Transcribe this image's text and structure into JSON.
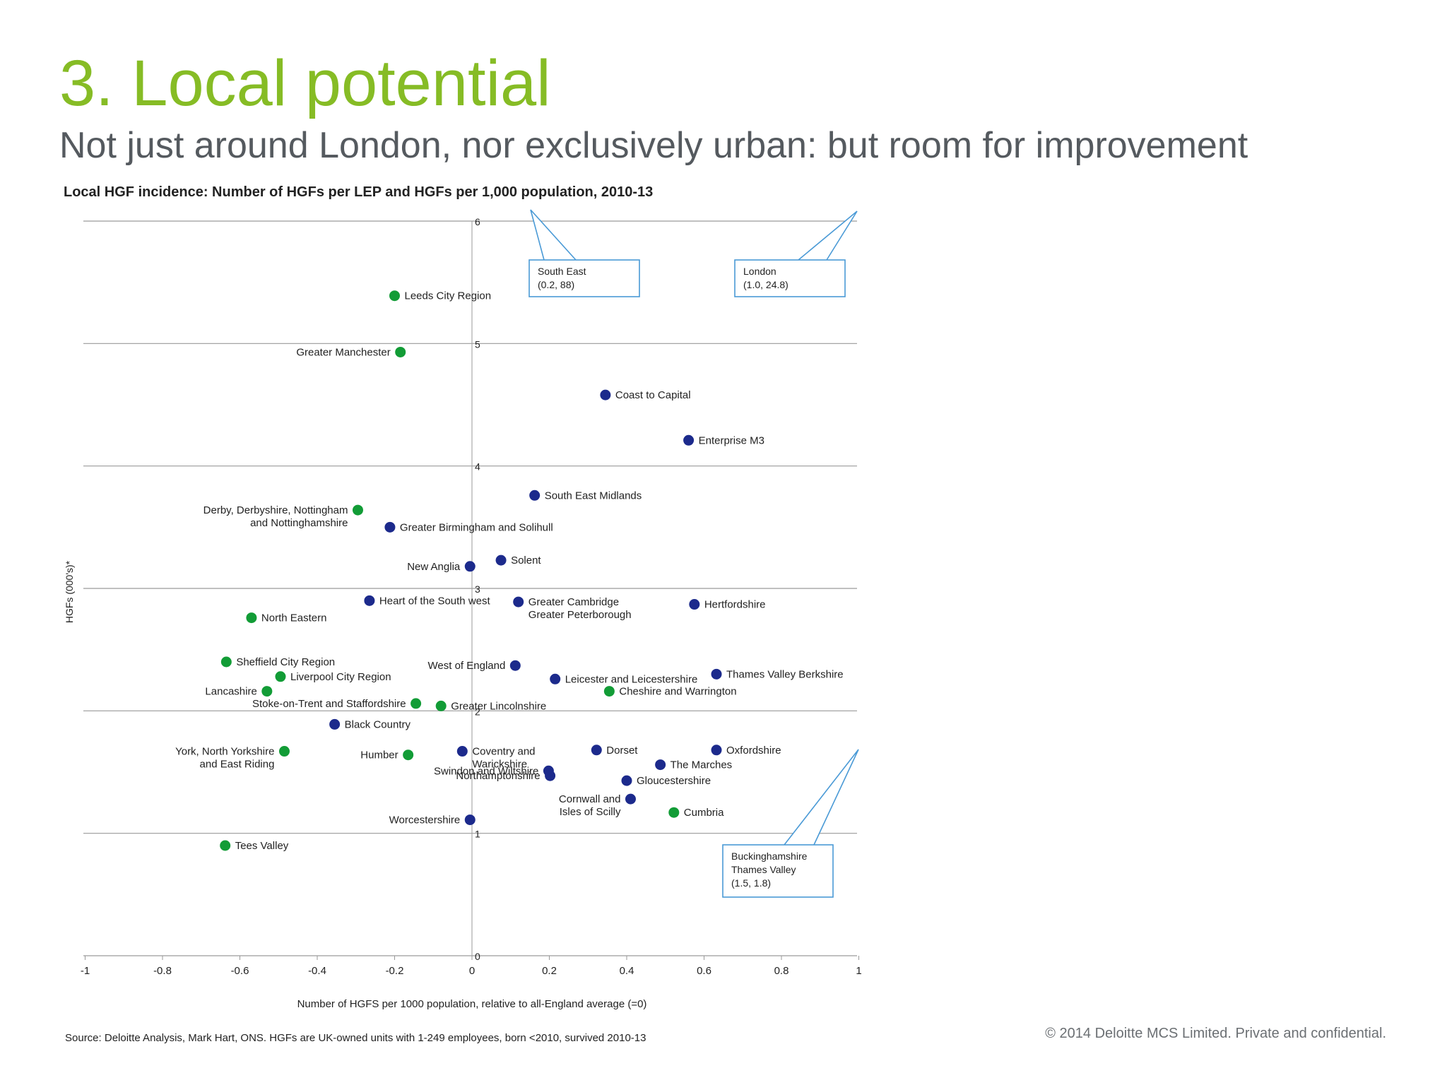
{
  "slide": {
    "title": "3. Local potential",
    "subtitle": "Not just around London, nor exclusively urban: but room for improvement",
    "source": "Source: Deloitte Analysis, Mark Hart, ONS. HGFs are UK-owned units with 1-249 employees, born <2010, survived 2010-13",
    "copyright": "© 2014 Deloitte MCS Limited. Private and confidential."
  },
  "colors": {
    "title_green": "#86bc25",
    "subtitle_gray": "#555a5f",
    "point_green": "#129c36",
    "point_blue": "#1c2a8c",
    "callout_blue": "#4a9ad6",
    "grid": "#9a9a9a"
  },
  "chart_data": {
    "type": "scatter",
    "title": "Local HGF incidence: Number of HGFs per LEP and HGFs per 1,000 population, 2010-13",
    "xlabel": "Number of HGFS per 1000 population, relative to all-England average (=0)",
    "ylabel": "HGFs (000's)*",
    "xlim": [
      -1,
      1
    ],
    "ylim": [
      0,
      6
    ],
    "xticks": [
      "-1",
      "-0.8",
      "-0.6",
      "-0.4",
      "-0.2",
      "0",
      "0.2",
      "0.4",
      "0.6",
      "0.8",
      "1"
    ],
    "yticks": [
      "0",
      "1",
      "2",
      "3",
      "4",
      "5",
      "6"
    ],
    "grid": "horizontal",
    "points": [
      {
        "label": "Leeds City Region",
        "x": -0.2,
        "y": 5.39,
        "color": "green",
        "side": "right"
      },
      {
        "label": "Greater Manchester",
        "x": -0.185,
        "y": 4.93,
        "color": "green",
        "side": "left"
      },
      {
        "label": "Coast to Capital",
        "x": 0.345,
        "y": 4.58,
        "color": "blue",
        "side": "right"
      },
      {
        "label": "Enterprise M3",
        "x": 0.56,
        "y": 4.21,
        "color": "blue",
        "side": "right"
      },
      {
        "label": "South East Midlands",
        "x": 0.162,
        "y": 3.76,
        "color": "blue",
        "side": "right"
      },
      {
        "label": "Derby, Derbyshire, Nottingham\nand Nottinghamshire",
        "x": -0.295,
        "y": 3.64,
        "color": "green",
        "side": "left"
      },
      {
        "label": "Greater Birmingham and Solihull",
        "x": -0.212,
        "y": 3.5,
        "color": "blue",
        "side": "right"
      },
      {
        "label": "New Anglia",
        "x": -0.005,
        "y": 3.18,
        "color": "blue",
        "side": "left"
      },
      {
        "label": "Solent",
        "x": 0.075,
        "y": 3.23,
        "color": "blue",
        "side": "right"
      },
      {
        "label": "Heart of the South west",
        "x": -0.265,
        "y": 2.9,
        "color": "blue",
        "side": "right"
      },
      {
        "label": "Greater Cambridge\nGreater Peterborough",
        "x": 0.12,
        "y": 2.89,
        "color": "blue",
        "side": "right"
      },
      {
        "label": "Hertfordshire",
        "x": 0.575,
        "y": 2.87,
        "color": "blue",
        "side": "right"
      },
      {
        "label": "North Eastern",
        "x": -0.57,
        "y": 2.76,
        "color": "green",
        "side": "right"
      },
      {
        "label": "Sheffield City Region",
        "x": -0.635,
        "y": 2.4,
        "color": "green",
        "side": "right"
      },
      {
        "label": "Liverpool City Region",
        "x": -0.495,
        "y": 2.28,
        "color": "green",
        "side": "right"
      },
      {
        "label": "Lancashire",
        "x": -0.53,
        "y": 2.16,
        "color": "green",
        "side": "left"
      },
      {
        "label": "West of England",
        "x": 0.112,
        "y": 2.37,
        "color": "blue",
        "side": "left"
      },
      {
        "label": "Leicester and Leicestershire",
        "x": 0.215,
        "y": 2.26,
        "color": "blue",
        "side": "right"
      },
      {
        "label": "Thames Valley Berkshire",
        "x": 0.632,
        "y": 2.3,
        "color": "blue",
        "side": "right"
      },
      {
        "label": "Cheshire and Warrington",
        "x": 0.355,
        "y": 2.16,
        "color": "green",
        "side": "right"
      },
      {
        "label": "Stoke-on-Trent and Staffordshire",
        "x": -0.145,
        "y": 2.06,
        "color": "green",
        "side": "left"
      },
      {
        "label": "Greater Lincolnshire",
        "x": -0.08,
        "y": 2.04,
        "color": "green",
        "side": "right"
      },
      {
        "label": "Black Country",
        "x": -0.355,
        "y": 1.89,
        "color": "blue",
        "side": "right"
      },
      {
        "label": "York, North Yorkshire\nand East Riding",
        "x": -0.485,
        "y": 1.67,
        "color": "green",
        "side": "left"
      },
      {
        "label": "Humber",
        "x": -0.165,
        "y": 1.64,
        "color": "green",
        "side": "left"
      },
      {
        "label": "Coventry and\nWarickshire",
        "x": -0.025,
        "y": 1.67,
        "color": "blue",
        "side": "right"
      },
      {
        "label": "Dorset",
        "x": 0.322,
        "y": 1.68,
        "color": "blue",
        "side": "right"
      },
      {
        "label": "Oxfordshire",
        "x": 0.632,
        "y": 1.68,
        "color": "blue",
        "side": "right"
      },
      {
        "label": "The Marches",
        "x": 0.487,
        "y": 1.56,
        "color": "blue",
        "side": "right"
      },
      {
        "label": "Swindon and Wiltshire",
        "x": 0.198,
        "y": 1.51,
        "color": "blue",
        "side": "left"
      },
      {
        "label": "Northamptonshire",
        "x": 0.202,
        "y": 1.47,
        "color": "blue",
        "side": "left"
      },
      {
        "label": "Gloucestershire",
        "x": 0.4,
        "y": 1.43,
        "color": "blue",
        "side": "right"
      },
      {
        "label": "Cornwall and\nIsles of Scilly",
        "x": 0.41,
        "y": 1.28,
        "color": "blue",
        "side": "left"
      },
      {
        "label": "Cumbria",
        "x": 0.522,
        "y": 1.17,
        "color": "green",
        "side": "right"
      },
      {
        "label": "Worcestershire",
        "x": -0.005,
        "y": 1.11,
        "color": "blue",
        "side": "left"
      },
      {
        "label": "Tees Valley",
        "x": -0.638,
        "y": 0.9,
        "color": "green",
        "side": "right"
      }
    ],
    "callouts": [
      {
        "lines": [
          "South East",
          "(0.2, 88)"
        ],
        "x": 0.2,
        "y": 88
      },
      {
        "lines": [
          "London",
          "(1.0, 24.8)"
        ],
        "x": 1.0,
        "y": 24.8
      },
      {
        "lines": [
          "Buckinghamshire",
          "Thames Valley",
          "(1.5, 1.8)"
        ],
        "x": 1.5,
        "y": 1.8
      }
    ]
  }
}
